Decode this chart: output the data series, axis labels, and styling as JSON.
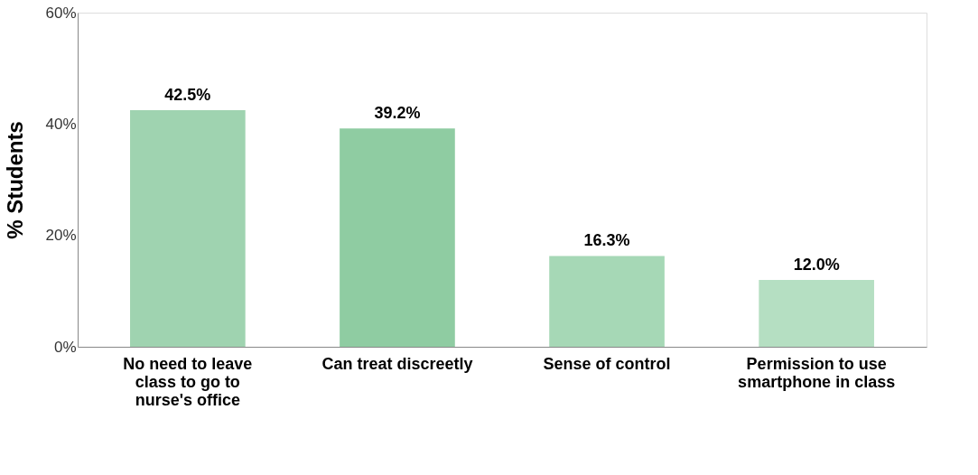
{
  "chart_data": {
    "type": "bar",
    "ylabel": "% Students",
    "categories": [
      "No need to leave class to go to nurse's office",
      "Can treat discreetly",
      "Sense of control",
      "Permission to use smartphone in class"
    ],
    "values": [
      42.5,
      39.2,
      16.3,
      12.0
    ],
    "value_labels": [
      "42.5%",
      "39.2%",
      "16.3%",
      "12.0%"
    ],
    "colors": [
      "#9fd3b0",
      "#8fcca2",
      "#a6d8b6",
      "#b5dfc2"
    ],
    "ylim": [
      0,
      60
    ],
    "yticks": [
      {
        "value": 0,
        "label": "0%"
      },
      {
        "value": 20,
        "label": "20%"
      },
      {
        "value": 40,
        "label": "40%"
      },
      {
        "value": 60,
        "label": "60%"
      }
    ],
    "grid": false
  }
}
